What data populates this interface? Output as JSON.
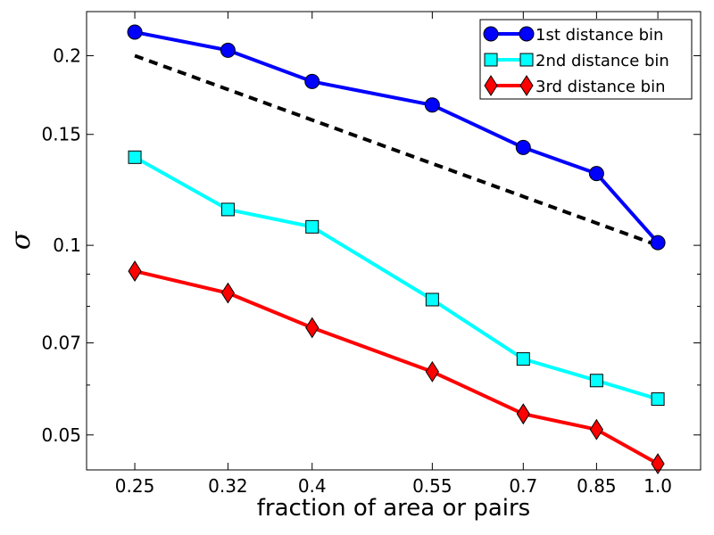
{
  "chart_data": {
    "type": "line",
    "xscale": "log",
    "yscale": "log",
    "xlabel": "fraction of area or pairs",
    "ylabel": "σ",
    "xlim": [
      0.22,
      1.12
    ],
    "ylim": [
      0.044,
      0.235
    ],
    "xticks": [
      0.25,
      0.32,
      0.4,
      0.55,
      0.7,
      0.85,
      1.0
    ],
    "xtick_labels": [
      "0.25",
      "0.32",
      "0.4",
      "0.55",
      "0.7",
      "0.85",
      "1.0"
    ],
    "yticks": [
      0.05,
      0.07,
      0.1,
      0.15,
      0.2
    ],
    "ytick_labels": [
      "0.05",
      "0.07",
      "0.1",
      "0.15",
      "0.2"
    ],
    "legend_position": "top-right",
    "x": [
      0.25,
      0.32,
      0.4,
      0.55,
      0.7,
      0.85,
      1.0
    ],
    "series": [
      {
        "name": "1st distance bin",
        "color": "#0000ff",
        "marker": "circle",
        "values": [
          0.218,
          0.204,
          0.182,
          0.167,
          0.143,
          0.13,
          0.101
        ]
      },
      {
        "name": "2nd distance bin",
        "color": "#00ffff",
        "marker": "square",
        "values": [
          0.138,
          0.114,
          0.107,
          0.082,
          0.066,
          0.061,
          0.057
        ]
      },
      {
        "name": "3rd distance bin",
        "color": "#ff0000",
        "marker": "diamond",
        "values": [
          0.091,
          0.084,
          0.074,
          0.063,
          0.054,
          0.051,
          0.045
        ]
      }
    ],
    "reference_line": {
      "style": "dashed",
      "color": "#000000",
      "points": [
        [
          0.25,
          0.2
        ],
        [
          1.0,
          0.1
        ]
      ]
    }
  }
}
